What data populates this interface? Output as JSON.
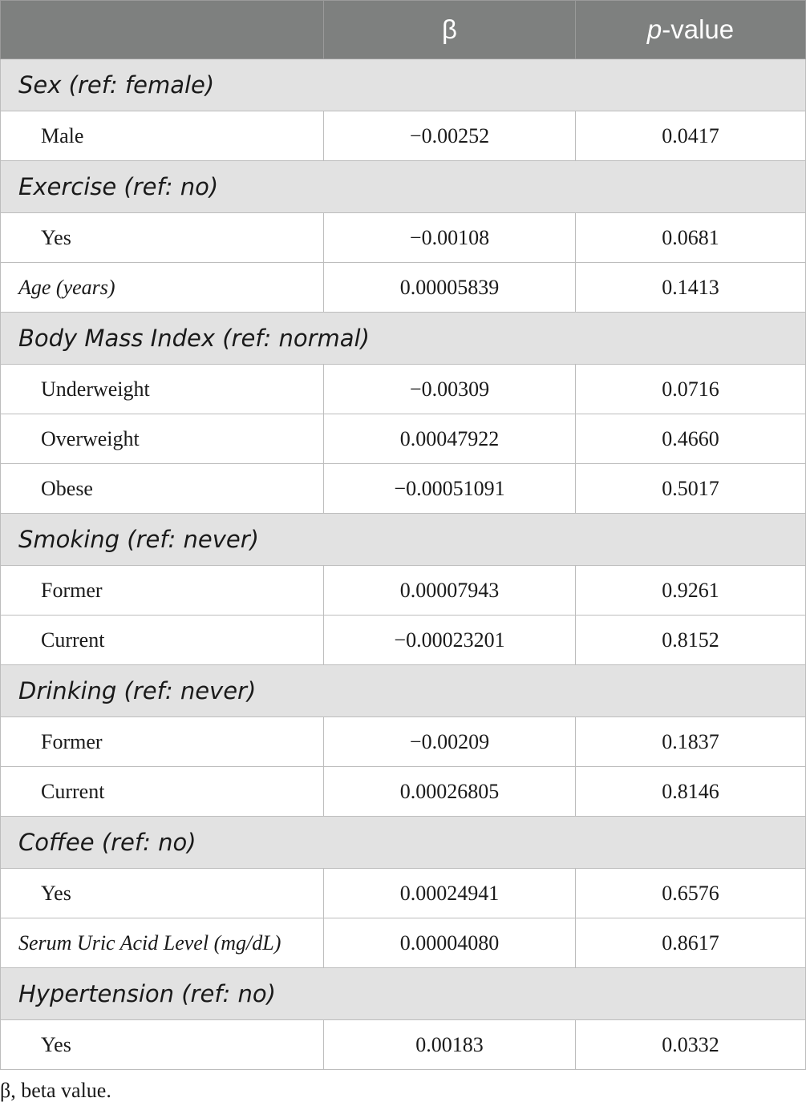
{
  "header": {
    "col_beta": "β",
    "col_p_italic": "p",
    "col_p_rest": "-value"
  },
  "groups": {
    "sex": "Sex (ref: female)",
    "exercise": "Exercise (ref: no)",
    "bmi": "Body Mass Index (ref: normal)",
    "smoking": "Smoking (ref: never)",
    "drinking": "Drinking (ref: never)",
    "coffee": "Coffee (ref: no)",
    "hypertension": "Hypertension (ref: no)"
  },
  "rows": {
    "male": {
      "label": "Male",
      "beta": "−0.00252",
      "p": "0.0417"
    },
    "exercise_yes": {
      "label": "Yes",
      "beta": "−0.00108",
      "p": "0.0681"
    },
    "age": {
      "label": "Age (years)",
      "beta": "0.00005839",
      "p": "0.1413"
    },
    "underweight": {
      "label": "Underweight",
      "beta": "−0.00309",
      "p": "0.0716"
    },
    "overweight": {
      "label": "Overweight",
      "beta": "0.00047922",
      "p": "0.4660"
    },
    "obese": {
      "label": "Obese",
      "beta": "−0.00051091",
      "p": "0.5017"
    },
    "smoking_former": {
      "label": "Former",
      "beta": "0.00007943",
      "p": "0.9261"
    },
    "smoking_current": {
      "label": "Current",
      "beta": "−0.00023201",
      "p": "0.8152"
    },
    "drinking_former": {
      "label": "Former",
      "beta": "−0.00209",
      "p": "0.1837"
    },
    "drinking_current": {
      "label": "Current",
      "beta": "0.00026805",
      "p": "0.8146"
    },
    "coffee_yes": {
      "label": "Yes",
      "beta": "0.00024941",
      "p": "0.6576"
    },
    "uric_acid": {
      "label": "Serum Uric Acid Level (mg/dL)",
      "beta": "0.00004080",
      "p": "0.8617"
    },
    "hypertension_yes": {
      "label": "Yes",
      "beta": "0.00183",
      "p": "0.0332"
    }
  },
  "footnote": "β, beta value."
}
